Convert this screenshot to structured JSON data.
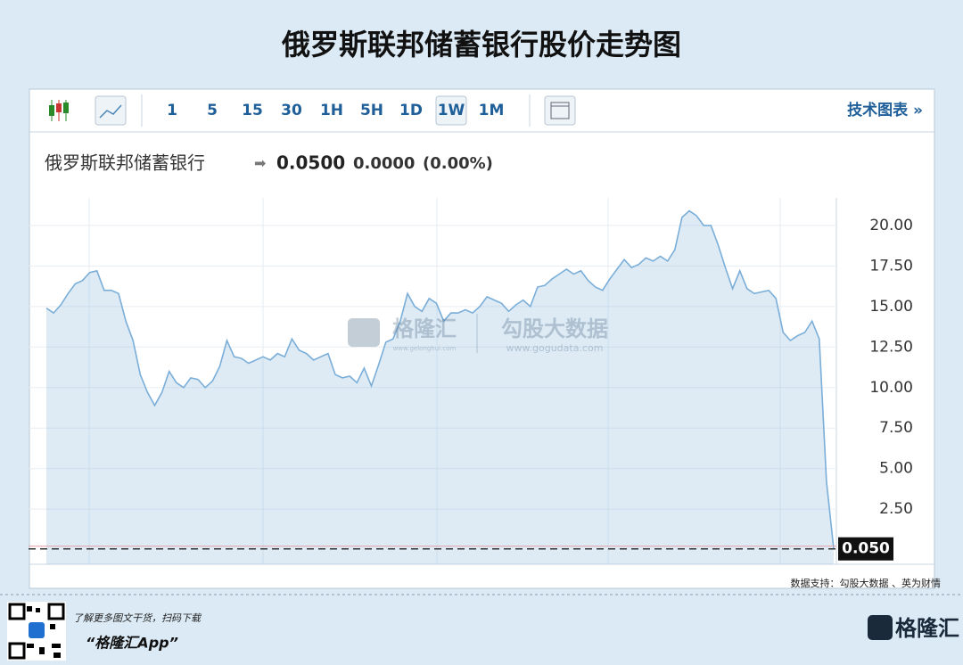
{
  "title": "俄罗斯联邦储蓄银行股价走势图",
  "toolbar": {
    "intervals": [
      "1",
      "5",
      "15",
      "30",
      "1H",
      "5H",
      "1D",
      "1W",
      "1M"
    ],
    "active": "1W",
    "link": "技术图表 »"
  },
  "chart_data": {
    "type": "area",
    "series_name": "俄罗斯联邦储蓄银行",
    "price": "0.0500",
    "change": "0.0000",
    "change_pct": "(0.00%)",
    "color": "#7aaed8",
    "values": [
      14.9,
      14.6,
      15.1,
      15.8,
      16.4,
      16.6,
      17.1,
      17.2,
      16.0,
      16.0,
      15.8,
      14.1,
      12.9,
      10.8,
      9.7,
      8.9,
      9.7,
      11.0,
      10.3,
      10.0,
      10.6,
      10.5,
      10.0,
      10.4,
      11.3,
      12.9,
      11.9,
      11.8,
      11.5,
      11.7,
      11.9,
      11.7,
      12.1,
      11.9,
      13.0,
      12.3,
      12.1,
      11.7,
      11.9,
      12.1,
      10.8,
      10.6,
      10.7,
      10.3,
      11.2,
      10.1,
      11.4,
      12.8,
      13.0,
      14.1,
      15.8,
      15.0,
      14.7,
      15.5,
      15.2,
      14.1,
      14.6,
      14.6,
      14.8,
      14.6,
      15.0,
      15.6,
      15.4,
      15.2,
      14.7,
      15.1,
      15.4,
      15.0,
      16.2,
      16.3,
      16.7,
      17.0,
      17.3,
      17.0,
      17.2,
      16.6,
      16.2,
      16.0,
      16.7,
      17.3,
      17.9,
      17.4,
      17.6,
      18.0,
      17.8,
      18.1,
      17.8,
      18.5,
      20.5,
      20.9,
      20.6,
      20.0,
      20.0,
      18.8,
      17.4,
      16.1,
      17.2,
      16.1,
      15.8,
      15.9,
      16.0,
      15.5,
      13.4,
      12.9,
      13.2,
      13.4,
      14.1,
      13.0,
      4.2,
      0.05
    ],
    "ylim": [
      -0.9,
      21.7
    ],
    "yticks": [
      {
        "value": 2.5,
        "label": "2.50"
      },
      {
        "value": 5,
        "label": "5.00"
      },
      {
        "value": 7.5,
        "label": "7.50"
      },
      {
        "value": 10,
        "label": "10.00"
      },
      {
        "value": 12.5,
        "label": "12.50"
      },
      {
        "value": 15,
        "label": "15.00"
      },
      {
        "value": 17.5,
        "label": "17.50"
      },
      {
        "value": 20,
        "label": "20.00"
      }
    ],
    "current": {
      "value": 0.05,
      "label": "0.050"
    },
    "grid": true
  },
  "watermark": {
    "brand": "格隆汇",
    "brand_url": "www.gelonghui.com",
    "data": "勾股大数据",
    "data_url": "www.gogudata.com"
  },
  "footer": {
    "source": "数据支持：勾股大数据 、英为财情",
    "promo": "了解更多图文干货，扫码下载",
    "app": "“格隆汇App”",
    "logo": "格隆汇"
  }
}
